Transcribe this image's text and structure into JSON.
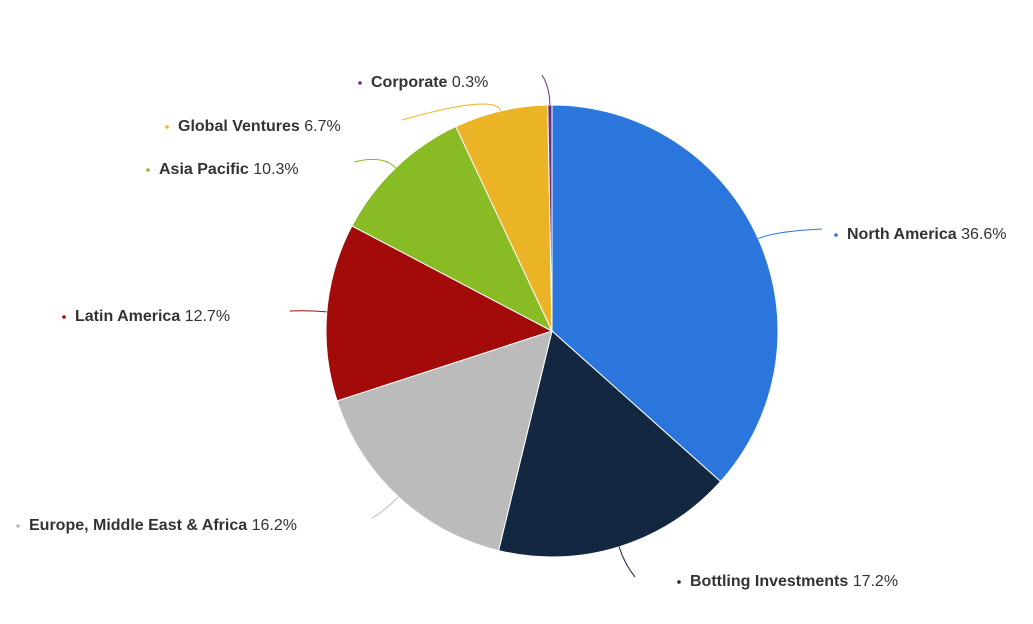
{
  "chart_data": {
    "type": "pie",
    "categories": [
      "North America",
      "Bottling Investments",
      "Europe, Middle East & Africa",
      "Latin America",
      "Asia Pacific",
      "Global Ventures",
      "Corporate"
    ],
    "values": [
      36.6,
      17.2,
      16.2,
      12.7,
      10.3,
      6.7,
      0.3
    ],
    "value_labels": [
      "36.6%",
      "17.2%",
      "16.2%",
      "12.7%",
      "10.3%",
      "6.7%",
      "0.3%"
    ],
    "colors": [
      "#2a76dd",
      "#132840",
      "#bbbbbb",
      "#a30b0b",
      "#88bb24",
      "#ebb427",
      "#6b2d7e"
    ]
  }
}
